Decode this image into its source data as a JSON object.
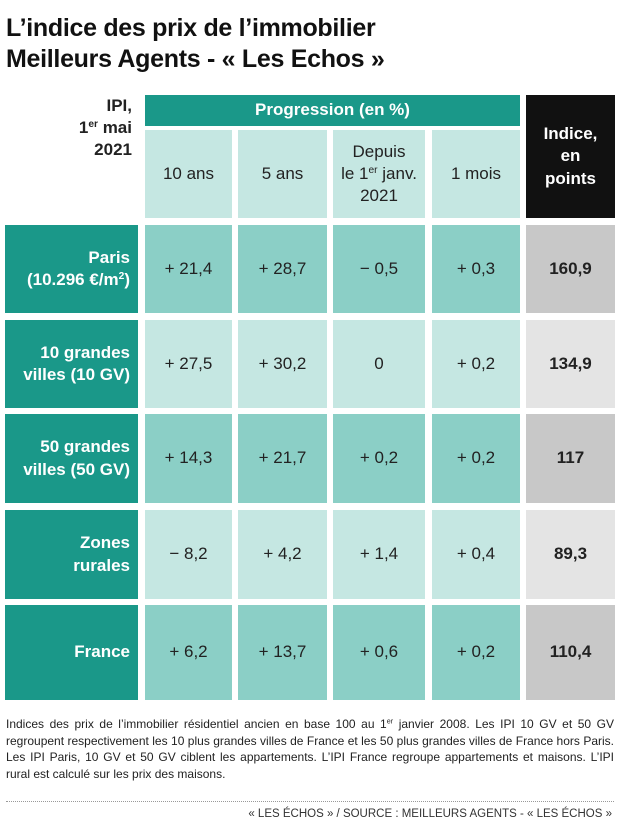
{
  "title": [
    "L’indice des prix de l’immobilier",
    "Meilleurs Agents - « Les Echos »"
  ],
  "stub_header": [
    "IPI,",
    "1",
    "er",
    " mai",
    "2021"
  ],
  "group_header": "Progression (en %)",
  "columns": [
    [
      "10 ans"
    ],
    [
      "5 ans"
    ],
    [
      "Depuis",
      "le 1",
      "er",
      " janv.",
      "2021"
    ],
    [
      "1 mois"
    ]
  ],
  "index_header": [
    "Indice,",
    "en",
    "points"
  ],
  "rows": [
    {
      "label": [
        "Paris",
        "(10.296 €/m",
        "2",
        ")"
      ],
      "values": [
        "+ 21,4",
        "+ 28,7",
        "− 0,5",
        "+ 0,3"
      ],
      "index": "160,9"
    },
    {
      "label": [
        "10 grandes",
        "villes (10 GV)"
      ],
      "values": [
        "+ 27,5",
        "+ 30,2",
        "0",
        "+ 0,2"
      ],
      "index": "134,9"
    },
    {
      "label": [
        "50 grandes",
        "villes (50 GV)"
      ],
      "values": [
        "+ 14,3",
        "+ 21,7",
        "+ 0,2",
        "+ 0,2"
      ],
      "index": "117"
    },
    {
      "label": [
        "Zones",
        "rurales"
      ],
      "values": [
        "− 8,2",
        "+ 4,2",
        "+ 1,4",
        "+ 0,4"
      ],
      "index": "89,3"
    },
    {
      "label": [
        "France"
      ],
      "values": [
        "+ 6,2",
        "+ 13,7",
        "+ 0,6",
        "+ 0,2"
      ],
      "index": "110,4"
    }
  ],
  "footnote": [
    "Indices des prix de l’immobilier résidentiel ancien en base 100 au 1",
    "er",
    " janvier 2008. Les IPI 10 GV et 50 GV regroupent respectivement les 10 plus grandes villes de France et les 50 plus grandes villes de France hors Paris. Les IPI Paris, 10 GV et 50 GV ciblent les appartements. L’IPI France regroupe appartements et maisons. L’IPI rural est calculé sur les prix des maisons."
  ],
  "source": "« LES ÉCHOS » / SOURCE : MEILLEURS AGENTS - « LES ÉCHOS »"
}
